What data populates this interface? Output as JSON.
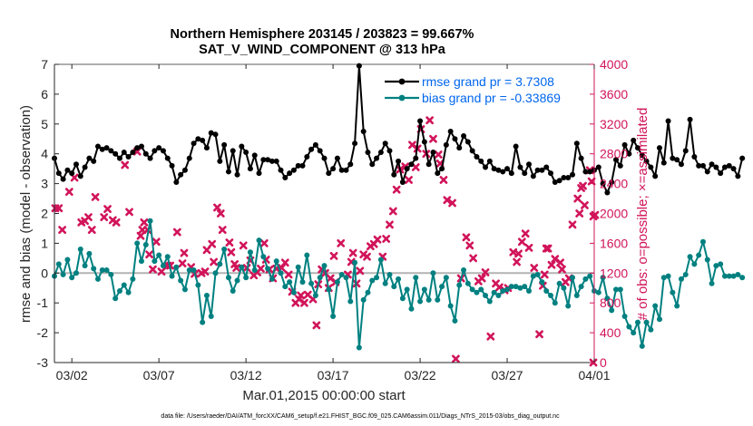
{
  "chart_data": {
    "type": "line",
    "title": "Northern Hemisphere 203145 / 203823 = 99.667%",
    "subtitle": "SAT_V_WIND_COMPONENT @ 313 hPa",
    "xlabel": "Mar.01,2015 00:00:00 start",
    "ylabel": "rmse and bias (model - observation)",
    "y2label": "# of obs: o=possible; ×=assimilated",
    "footnote": "data file: /Users/raeder/DAI/ATM_forcXX/CAM6_setup/f.e21.FHIST_BGC.f09_025.CAM6assim.011/Diags_NTrS_2015-03/obs_diag_output.nc",
    "x_ticks": [
      {
        "day": 2,
        "label": "03/02"
      },
      {
        "day": 7,
        "label": "03/07"
      },
      {
        "day": 12,
        "label": "03/12"
      },
      {
        "day": 17,
        "label": "03/17"
      },
      {
        "day": 22,
        "label": "03/22"
      },
      {
        "day": 27,
        "label": "03/27"
      },
      {
        "day": 32,
        "label": "04/01"
      }
    ],
    "xlim": [
      1,
      32
    ],
    "ylim": [
      -3,
      7
    ],
    "y_ticks": [
      "-3",
      "-2",
      "-1",
      "0",
      "1",
      "2",
      "3",
      "4",
      "5",
      "6",
      "7"
    ],
    "y2lim": [
      0,
      4000
    ],
    "y2_ticks": [
      "0",
      "400",
      "800",
      "1200",
      "1600",
      "2000",
      "2400",
      "2800",
      "3200",
      "3600",
      "4000"
    ],
    "zero_line": true,
    "grid": false,
    "legend_position": "top-right",
    "series": [
      {
        "name": "rmse grand pr = 3.7308",
        "axis": "left",
        "color": "#000000",
        "marker": "circle",
        "x0": 1.0,
        "dx": 0.25,
        "values": [
          3.85,
          3.35,
          3.15,
          3.45,
          3.35,
          3.65,
          3.25,
          3.55,
          3.85,
          3.75,
          4.25,
          4.15,
          4.2,
          4.1,
          4.0,
          3.85,
          4.05,
          3.9,
          4.05,
          4.2,
          4.25,
          4.0,
          3.85,
          4.1,
          4.2,
          4.1,
          3.85,
          3.6,
          3.05,
          3.3,
          3.45,
          3.85,
          4.35,
          4.5,
          4.45,
          4.2,
          4.7,
          4.65,
          3.75,
          4.3,
          3.4,
          4.1,
          3.3,
          4.25,
          4.05,
          3.5,
          3.95,
          3.35,
          3.8,
          3.8,
          3.75,
          3.75,
          3.45,
          3.2,
          3.35,
          3.45,
          3.6,
          3.6,
          3.9,
          4.15,
          4.3,
          4.1,
          3.85,
          3.35,
          3.5,
          3.85,
          3.45,
          3.45,
          3.65,
          4.35,
          6.95,
          4.75,
          4.05,
          3.65,
          3.85,
          4.05,
          4.35,
          4.1,
          3.3,
          3.75,
          3.05,
          3.5,
          3.65,
          3.85,
          5.1,
          4.4,
          3.65,
          4.05,
          3.35,
          3.5,
          4.3,
          4.75,
          4.5,
          4.2,
          4.6,
          4.4,
          4.1,
          3.9,
          3.75,
          3.55,
          3.75,
          3.5,
          3.45,
          3.4,
          3.5,
          3.35,
          4.25,
          3.55,
          3.35,
          3.65,
          3.25,
          3.45,
          3.45,
          3.55,
          3.35,
          3.05,
          3.1,
          3.2,
          3.2,
          3.3,
          4.35,
          3.85,
          3.4,
          3.4,
          3.45,
          3.55,
          3.0,
          2.7,
          3.05,
          3.8,
          3.6,
          4.3,
          4.0,
          4.45,
          4.2,
          3.95,
          3.75,
          3.55,
          3.25,
          4.2,
          3.7,
          5.1,
          3.85,
          3.8,
          3.65,
          4.1,
          5.15,
          3.9,
          3.6,
          3.6,
          3.4,
          3.65,
          3.55,
          3.35,
          3.55,
          3.6,
          3.5,
          3.25,
          3.85
        ]
      },
      {
        "name": "bias grand pr = -0.33869",
        "axis": "left",
        "color": "#008080",
        "marker": "circle",
        "x0": 1.0,
        "dx": 0.25,
        "values": [
          -0.1,
          0.3,
          -0.05,
          0.45,
          -0.15,
          0.0,
          0.8,
          0.25,
          0.65,
          0.15,
          -0.2,
          0.1,
          0.1,
          -0.05,
          -0.85,
          -0.6,
          -0.4,
          -0.65,
          -0.2,
          1.0,
          0.4,
          0.95,
          1.75,
          0.4,
          0.6,
          0.25,
          0.55,
          -0.1,
          0.2,
          -0.25,
          -0.55,
          0.1,
          0.1,
          -0.4,
          -1.65,
          -0.75,
          -1.45,
          0.0,
          0.3,
          0.8,
          -0.15,
          -0.6,
          -0.25,
          0.2,
          -0.15,
          0.7,
          0.1,
          1.1,
          0.55,
          0.15,
          -0.2,
          0.4,
          0.0,
          -0.45,
          -0.3,
          -0.65,
          0.2,
          -0.3,
          0.6,
          -0.35,
          -0.75,
          -0.15,
          0.25,
          -0.55,
          -1.45,
          -0.3,
          -0.05,
          -0.15,
          -0.95,
          0.35,
          -2.5,
          -0.9,
          -0.65,
          -0.25,
          -0.15,
          0.45,
          -0.35,
          -0.05,
          -0.45,
          -0.2,
          -0.85,
          -0.55,
          -1.2,
          -0.15,
          -0.95,
          -0.55,
          -0.9,
          0.0,
          -0.9,
          -0.45,
          -0.15,
          -1.1,
          -1.6,
          -0.4,
          0.1,
          -0.35,
          -0.55,
          -0.65,
          -0.55,
          -0.75,
          -0.95,
          -0.65,
          -0.75,
          -0.6,
          -0.55,
          -0.45,
          -0.45,
          -0.5,
          -0.45,
          -0.6,
          -0.1,
          -0.05,
          -0.3,
          -0.6,
          -0.75,
          -1.0,
          -0.35,
          -0.5,
          -1.1,
          -0.15,
          -0.75,
          -0.45,
          -0.2,
          -0.1,
          -0.6,
          -0.65,
          -0.15,
          -0.85,
          -1.25,
          -0.55,
          -0.55,
          -1.45,
          -1.8,
          -2.0,
          -1.65,
          -2.45,
          -1.65,
          -1.9,
          -1.1,
          -1.55,
          -0.15,
          -0.1,
          -0.65,
          -1.1,
          -0.2,
          -0.05,
          0.55,
          0.3,
          0.6,
          1.05,
          0.45,
          -0.35,
          0.25,
          0.3,
          -0.1,
          -0.1,
          -0.1,
          -0.05,
          -0.15
        ]
      },
      {
        "name": "assimilated",
        "axis": "right",
        "color": "#d1145a",
        "marker": "x",
        "points": [
          [
            1.05,
            2070
          ],
          [
            1.25,
            2070
          ],
          [
            1.45,
            1780
          ],
          [
            1.85,
            2290
          ],
          [
            2.15,
            2480
          ],
          [
            2.55,
            1880
          ],
          [
            2.75,
            1900
          ],
          [
            2.95,
            1950
          ],
          [
            3.15,
            1780
          ],
          [
            3.35,
            2220
          ],
          [
            3.85,
            1950
          ],
          [
            4.05,
            2060
          ],
          [
            4.35,
            1910
          ],
          [
            4.55,
            1880
          ],
          [
            5.05,
            2650
          ],
          [
            5.3,
            2020
          ],
          [
            5.75,
            2830
          ],
          [
            5.95,
            1700
          ],
          [
            6.05,
            1780
          ],
          [
            6.15,
            1880
          ],
          [
            6.35,
            1780
          ],
          [
            6.45,
            1450
          ],
          [
            6.65,
            1250
          ],
          [
            6.85,
            1620
          ],
          [
            7.15,
            1220
          ],
          [
            7.5,
            1300
          ],
          [
            7.65,
            1300
          ],
          [
            8.05,
            1750
          ],
          [
            8.35,
            1330
          ],
          [
            8.45,
            1470
          ],
          [
            8.85,
            1280
          ],
          [
            9.05,
            1190
          ],
          [
            9.45,
            1200
          ],
          [
            9.65,
            1220
          ],
          [
            9.75,
            1510
          ],
          [
            10.05,
            1590
          ],
          [
            10.15,
            1350
          ],
          [
            10.35,
            2080
          ],
          [
            10.55,
            2000
          ],
          [
            10.65,
            1780
          ],
          [
            11.05,
            1610
          ],
          [
            11.15,
            1480
          ],
          [
            11.35,
            1320
          ],
          [
            11.45,
            1270
          ],
          [
            11.85,
            1570
          ],
          [
            12.05,
            1270
          ],
          [
            12.25,
            1370
          ],
          [
            12.45,
            1170
          ],
          [
            12.65,
            1210
          ],
          [
            12.85,
            1260
          ],
          [
            13.05,
            1600
          ],
          [
            13.15,
            1380
          ],
          [
            13.35,
            1250
          ],
          [
            13.55,
            1130
          ],
          [
            13.75,
            1260
          ],
          [
            14.05,
            1270
          ],
          [
            14.25,
            1340
          ],
          [
            14.45,
            1180
          ],
          [
            14.65,
            950
          ],
          [
            14.85,
            800
          ],
          [
            15.05,
            850
          ],
          [
            15.15,
            900
          ],
          [
            15.35,
            800
          ],
          [
            15.55,
            910
          ],
          [
            15.85,
            850
          ],
          [
            16.05,
            500
          ],
          [
            16.15,
            1050
          ],
          [
            16.35,
            1250
          ],
          [
            16.55,
            1200
          ],
          [
            16.75,
            1000
          ],
          [
            16.85,
            1130
          ],
          [
            17.05,
            1430
          ],
          [
            17.15,
            1080
          ],
          [
            17.45,
            1600
          ],
          [
            17.85,
            1180
          ],
          [
            18.05,
            1350
          ],
          [
            18.15,
            1470
          ],
          [
            18.35,
            1060
          ],
          [
            18.55,
            1230
          ],
          [
            18.75,
            1450
          ],
          [
            18.95,
            1420
          ],
          [
            19.15,
            1560
          ],
          [
            19.35,
            1590
          ],
          [
            19.55,
            1650
          ],
          [
            19.85,
            1420
          ],
          [
            20.05,
            1660
          ],
          [
            20.25,
            1850
          ],
          [
            20.45,
            2030
          ],
          [
            20.65,
            2320
          ],
          [
            20.85,
            2590
          ],
          [
            21.15,
            2630
          ],
          [
            21.35,
            2450
          ],
          [
            21.55,
            2920
          ],
          [
            21.75,
            2620
          ],
          [
            21.85,
            2870
          ],
          [
            22.05,
            3130
          ],
          [
            22.35,
            2800
          ],
          [
            22.55,
            3250
          ],
          [
            22.75,
            3000
          ],
          [
            23.05,
            2790
          ],
          [
            23.15,
            2670
          ],
          [
            23.35,
            2450
          ],
          [
            23.55,
            2180
          ],
          [
            23.85,
            2140
          ],
          [
            24.05,
            50
          ],
          [
            24.35,
            1130
          ],
          [
            24.65,
            1680
          ],
          [
            24.85,
            1570
          ],
          [
            25.05,
            1400
          ],
          [
            25.35,
            1090
          ],
          [
            25.55,
            1130
          ],
          [
            25.75,
            1210
          ],
          [
            26.05,
            350
          ],
          [
            26.35,
            1060
          ],
          [
            26.55,
            1010
          ],
          [
            26.85,
            970
          ],
          [
            27.05,
            1000
          ],
          [
            27.35,
            1480
          ],
          [
            27.55,
            1350
          ],
          [
            27.65,
            1460
          ],
          [
            27.85,
            1620
          ],
          [
            28.05,
            1730
          ],
          [
            28.25,
            1540
          ],
          [
            28.55,
            1270
          ],
          [
            28.85,
            380
          ],
          [
            29.05,
            1030
          ],
          [
            29.15,
            1180
          ],
          [
            29.25,
            1530
          ],
          [
            29.35,
            1530
          ],
          [
            29.55,
            1310
          ],
          [
            29.75,
            1390
          ],
          [
            30.05,
            1340
          ],
          [
            30.15,
            1250
          ],
          [
            30.35,
            1080
          ],
          [
            30.55,
            1130
          ],
          [
            30.75,
            1850
          ],
          [
            31.05,
            2200
          ],
          [
            31.15,
            2000
          ],
          [
            31.25,
            2340
          ],
          [
            31.35,
            2370
          ],
          [
            31.45,
            2110
          ],
          [
            31.75,
            2580
          ],
          [
            31.85,
            2430
          ],
          [
            31.95,
            1960
          ],
          [
            32.05,
            1980
          ],
          [
            31.95,
            0
          ]
        ]
      }
    ]
  }
}
